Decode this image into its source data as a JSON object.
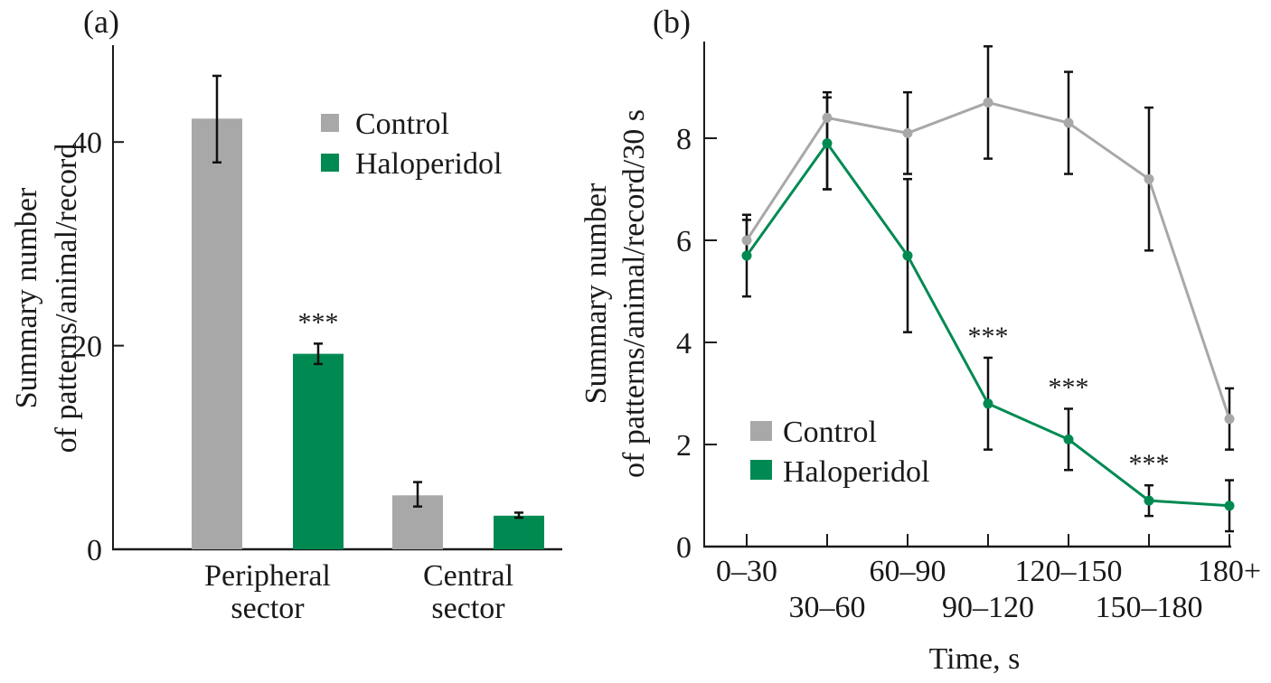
{
  "colors": {
    "control": "#a8a8a8",
    "haloperidol": "#008a52",
    "axis": "#1a1a1a",
    "error": "#111111"
  },
  "chart_data": [
    {
      "panel_label": "(a)",
      "type": "bar",
      "title": "",
      "xlabel": "",
      "ylabel_lines": [
        "Summary number",
        "of patterns/animal/record"
      ],
      "ylim": [
        0,
        48
      ],
      "yticks": [
        0,
        20,
        40
      ],
      "categories": [
        {
          "lines": [
            "Peripheral",
            "sector"
          ]
        },
        {
          "lines": [
            "Central",
            "sector"
          ]
        }
      ],
      "series": [
        {
          "name": "Control",
          "values": [
            42.3,
            5.3
          ],
          "err_low": [
            38.0,
            4.2
          ],
          "err_high": [
            46.5,
            6.6
          ]
        },
        {
          "name": "Haloperidol",
          "values": [
            19.2,
            3.3
          ],
          "err_low": [
            18.2,
            3.1
          ],
          "err_high": [
            20.2,
            3.6
          ]
        }
      ],
      "annotations": [
        {
          "text": "***",
          "series": "Haloperidol",
          "category_index": 0
        }
      ],
      "legend": {
        "placement": "top-right",
        "entries": [
          "Control",
          "Haloperidol"
        ]
      },
      "grid": false
    },
    {
      "panel_label": "(b)",
      "type": "line",
      "title": "",
      "xlabel": "Time, s",
      "ylabel_lines": [
        "Summary number",
        "of patterns/animal/record/30 s"
      ],
      "ylim": [
        0,
        9.5
      ],
      "yticks": [
        0,
        2,
        4,
        6,
        8
      ],
      "x": [
        "0–30",
        "30–60",
        "60–90",
        "90–120",
        "120–150",
        "150–180",
        "180+"
      ],
      "series": [
        {
          "name": "Control",
          "values": [
            6.0,
            8.4,
            8.1,
            8.7,
            8.3,
            7.2,
            2.5
          ],
          "err_low": [
            5.7,
            7.0,
            7.3,
            7.6,
            7.3,
            5.8,
            1.9
          ],
          "err_high": [
            6.5,
            8.9,
            8.9,
            9.8,
            9.3,
            8.6,
            3.1
          ]
        },
        {
          "name": "Haloperidol",
          "values": [
            5.7,
            7.9,
            5.7,
            2.8,
            2.1,
            0.9,
            0.8
          ],
          "err_low": [
            4.9,
            7.0,
            4.2,
            1.9,
            1.5,
            0.6,
            0.3
          ],
          "err_high": [
            6.4,
            8.8,
            7.2,
            3.7,
            2.7,
            1.2,
            1.3
          ]
        }
      ],
      "annotations": [
        {
          "text": "***",
          "series": "Haloperidol",
          "x_index": 3
        },
        {
          "text": "***",
          "series": "Haloperidol",
          "x_index": 4
        },
        {
          "text": "***",
          "series": "Haloperidol",
          "x_index": 5
        }
      ],
      "legend": {
        "placement": "lower-left",
        "entries": [
          "Control",
          "Haloperidol"
        ]
      },
      "grid": false
    }
  ]
}
